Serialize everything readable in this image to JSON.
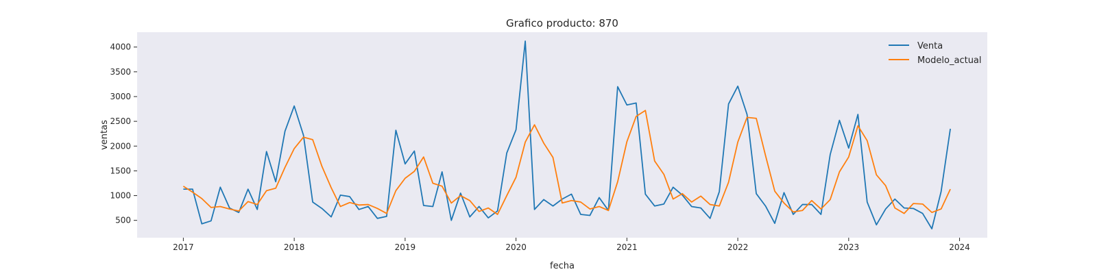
{
  "chart_data": {
    "type": "line",
    "title": "Grafico producto: 870",
    "xlabel": "fecha",
    "ylabel": "ventas",
    "x_tick_labels": [
      "2017",
      "2018",
      "2019",
      "2020",
      "2021",
      "2022",
      "2023",
      "2024"
    ],
    "y_tick_labels": [
      "500",
      "1000",
      "1500",
      "2000",
      "2500",
      "3000",
      "3500",
      "4000"
    ],
    "y_ticks": [
      500,
      1000,
      1500,
      2000,
      2500,
      3000,
      3500,
      4000
    ],
    "x_range": [
      "2016-08",
      "2024-04"
    ],
    "ylim": [
      150,
      4300
    ],
    "grid": false,
    "legend_position": "top-right",
    "start_month": "2017-01",
    "series": [
      {
        "name": "Venta",
        "color": "#1f77b4",
        "values": [
          1130,
          1130,
          430,
          490,
          1170,
          750,
          660,
          1130,
          720,
          1890,
          1280,
          2300,
          2810,
          2220,
          870,
          740,
          570,
          1010,
          980,
          720,
          780,
          540,
          580,
          2320,
          1640,
          1900,
          800,
          780,
          1480,
          500,
          1050,
          570,
          780,
          550,
          690,
          1860,
          2330,
          4120,
          720,
          920,
          790,
          930,
          1030,
          620,
          600,
          960,
          700,
          3200,
          2830,
          2870,
          1030,
          790,
          830,
          1170,
          1010,
          780,
          750,
          540,
          1080,
          2850,
          3210,
          2640,
          1040,
          790,
          440,
          1060,
          620,
          820,
          820,
          620,
          1830,
          2520,
          1960,
          2640,
          870,
          410,
          730,
          930,
          750,
          740,
          640,
          330,
          1080,
          2350
        ]
      },
      {
        "name": "Modelo_actual",
        "color": "#ff7f0e",
        "values": [
          1190,
          1070,
          940,
          760,
          780,
          730,
          690,
          880,
          820,
          1100,
          1150,
          1570,
          1950,
          2180,
          2130,
          1590,
          1160,
          780,
          860,
          810,
          820,
          740,
          640,
          1100,
          1350,
          1490,
          1780,
          1250,
          1190,
          850,
          1000,
          900,
          680,
          750,
          620,
          1000,
          1370,
          2080,
          2430,
          2060,
          1770,
          850,
          900,
          870,
          730,
          780,
          700,
          1280,
          2090,
          2600,
          2720,
          1700,
          1430,
          930,
          1040,
          870,
          990,
          820,
          790,
          1270,
          2080,
          2580,
          2560,
          1810,
          1090,
          850,
          670,
          700,
          900,
          730,
          920,
          1480,
          1780,
          2410,
          2110,
          1420,
          1200,
          750,
          640,
          840,
          830,
          660,
          730,
          1130
        ]
      }
    ]
  }
}
